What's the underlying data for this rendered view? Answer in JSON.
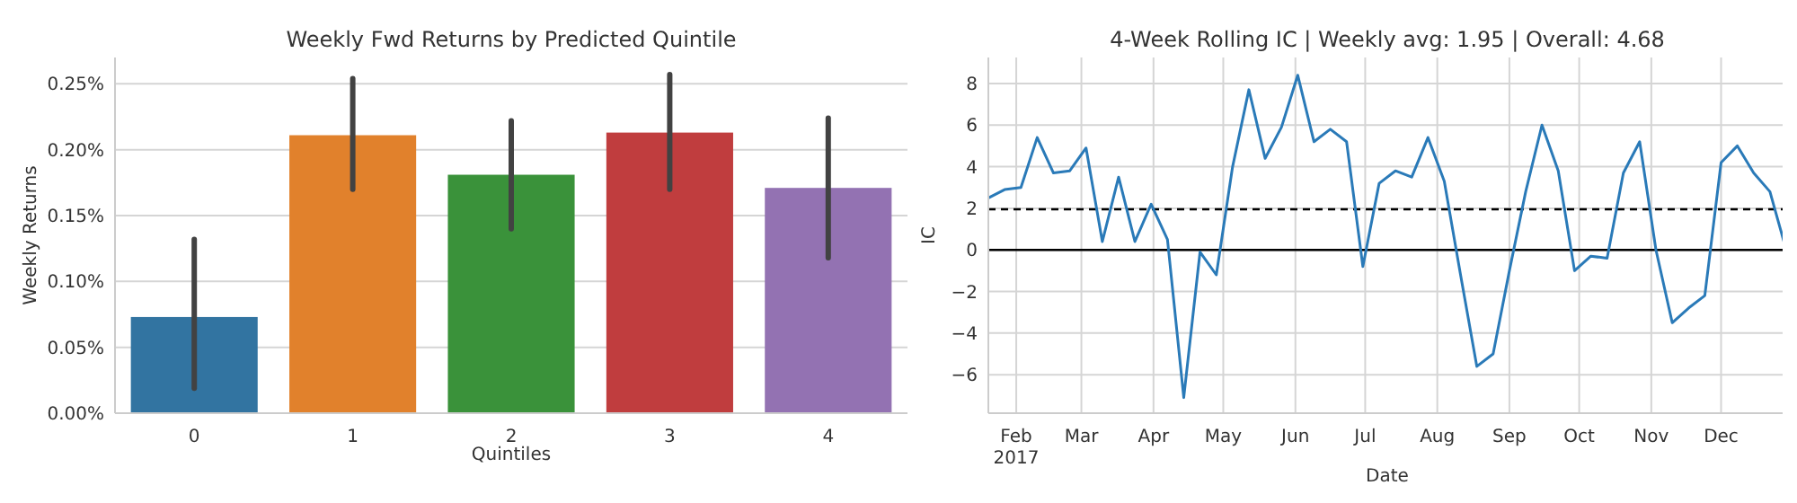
{
  "chart_data": [
    {
      "type": "bar",
      "title": "Weekly Fwd Returns by Predicted Quintile",
      "xlabel": "Quintiles",
      "ylabel": "Weekly Returns",
      "categories": [
        "0",
        "1",
        "2",
        "3",
        "4"
      ],
      "values": [
        0.073,
        0.211,
        0.181,
        0.213,
        0.171
      ],
      "colors": [
        "#3274a1",
        "#e1812c",
        "#3a923a",
        "#c03d3e",
        "#9372b2"
      ],
      "errors": [
        [
          0.019,
          0.132
        ],
        [
          0.17,
          0.254
        ],
        [
          0.14,
          0.222
        ],
        [
          0.17,
          0.257
        ],
        [
          0.118,
          0.224
        ]
      ],
      "ylim": [
        0,
        0.27
      ],
      "yticks": [
        {
          "value": 0,
          "label": "0.00%"
        },
        {
          "value": 0.05,
          "label": "0.05%"
        },
        {
          "value": 0.1,
          "label": "0.10%"
        },
        {
          "value": 0.15,
          "label": "0.15%"
        },
        {
          "value": 0.2,
          "label": "0.20%"
        },
        {
          "value": 0.25,
          "label": "0.25%"
        }
      ],
      "grid": "y"
    },
    {
      "type": "line",
      "title": "4-Week Rolling IC | Weekly avg: 1.95 | Overall: 4.68",
      "xlabel": "Date",
      "ylabel": "IC",
      "x": [
        "2017-01-20",
        "2017-01-27",
        "2017-02-03",
        "2017-02-10",
        "2017-02-17",
        "2017-02-24",
        "2017-03-03",
        "2017-03-10",
        "2017-03-17",
        "2017-03-24",
        "2017-03-31",
        "2017-04-07",
        "2017-04-14",
        "2017-04-21",
        "2017-04-28",
        "2017-05-05",
        "2017-05-12",
        "2017-05-19",
        "2017-05-26",
        "2017-06-02",
        "2017-06-09",
        "2017-06-16",
        "2017-06-23",
        "2017-06-30",
        "2017-07-07",
        "2017-07-14",
        "2017-07-21",
        "2017-07-28",
        "2017-08-04",
        "2017-08-11",
        "2017-08-18",
        "2017-08-25",
        "2017-09-01",
        "2017-09-08",
        "2017-09-15",
        "2017-09-22",
        "2017-09-29",
        "2017-10-06",
        "2017-10-13",
        "2017-10-20",
        "2017-10-27",
        "2017-11-03",
        "2017-11-10",
        "2017-11-17",
        "2017-11-24",
        "2017-12-01",
        "2017-12-08",
        "2017-12-15",
        "2017-12-22",
        "2017-12-29"
      ],
      "series": [
        {
          "color": "#2a7ab8",
          "values": [
            2.5,
            2.9,
            3.0,
            5.4,
            3.7,
            3.8,
            4.9,
            0.4,
            3.5,
            0.4,
            2.2,
            0.5,
            -7.1,
            -0.1,
            -1.2,
            4.0,
            7.7,
            4.4,
            5.9,
            8.4,
            5.2,
            5.8,
            5.2,
            -0.8,
            3.2,
            3.8,
            3.5,
            5.4,
            3.3,
            -1.2,
            -5.6,
            -5.0,
            -1.0,
            2.8,
            6.0,
            3.8,
            -1.0,
            -0.3,
            -0.4,
            3.7,
            5.2,
            0.0,
            -3.5,
            -2.8,
            -2.2,
            4.2,
            5.0,
            3.7,
            2.8,
            0.0
          ]
        }
      ],
      "xlim": [
        "2017-01-20",
        "2017-12-29"
      ],
      "xticks": [
        {
          "value": "2017-02-01",
          "label": "Feb\n2017"
        },
        {
          "value": "2017-03-01",
          "label": "Mar"
        },
        {
          "value": "2017-04-01",
          "label": "Apr"
        },
        {
          "value": "2017-05-01",
          "label": "May"
        },
        {
          "value": "2017-06-01",
          "label": "Jun"
        },
        {
          "value": "2017-07-01",
          "label": "Jul"
        },
        {
          "value": "2017-08-01",
          "label": "Aug"
        },
        {
          "value": "2017-09-01",
          "label": "Sep"
        },
        {
          "value": "2017-10-01",
          "label": "Oct"
        },
        {
          "value": "2017-11-01",
          "label": "Nov"
        },
        {
          "value": "2017-12-01",
          "label": "Dec"
        }
      ],
      "ylim": [
        -7.85,
        9.25
      ],
      "yticks": [
        {
          "value": -6,
          "label": "−6"
        },
        {
          "value": -4,
          "label": "−4"
        },
        {
          "value": -2,
          "label": "−2"
        },
        0,
        2,
        4,
        6,
        8
      ],
      "ref_lines": [
        {
          "axis": "y",
          "value": 0,
          "color": "#000000",
          "line_style": "solid"
        },
        {
          "axis": "y",
          "value": 1.95,
          "color": "#000000",
          "line_style": "dashed"
        }
      ],
      "grid": true
    }
  ]
}
